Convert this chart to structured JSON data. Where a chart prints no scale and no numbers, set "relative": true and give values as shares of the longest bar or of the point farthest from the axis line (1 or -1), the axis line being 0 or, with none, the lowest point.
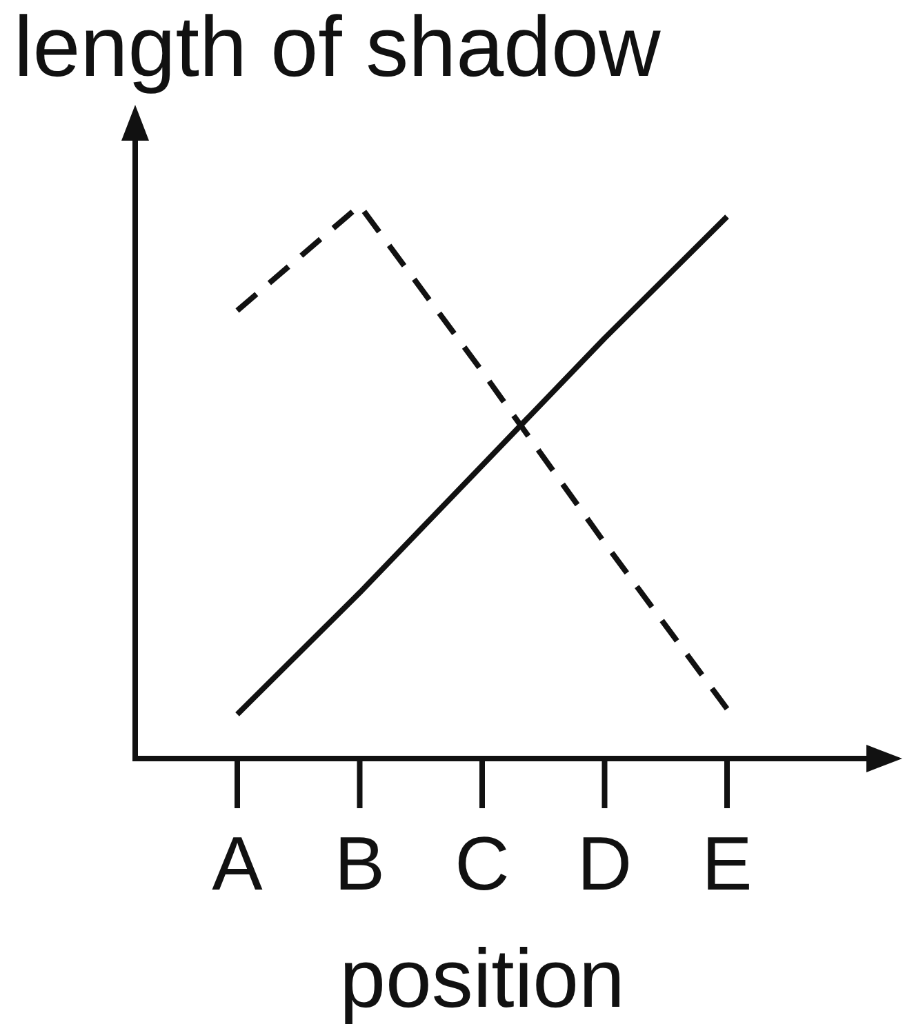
{
  "chart_data": {
    "type": "line",
    "relative": true,
    "ylabel": "length of shadow",
    "xlabel": "position",
    "categories": [
      "A",
      "B",
      "C",
      "D",
      "E"
    ],
    "series": [
      {
        "color": "#111111",
        "line_style": "dashed",
        "values": [
          0.81,
          1,
          0.7,
          0.39,
          0.09
        ]
      },
      {
        "color": "#111111",
        "line_style": "solid",
        "values": [
          0.08,
          0.3,
          0.53,
          0.76,
          0.98
        ]
      }
    ]
  }
}
